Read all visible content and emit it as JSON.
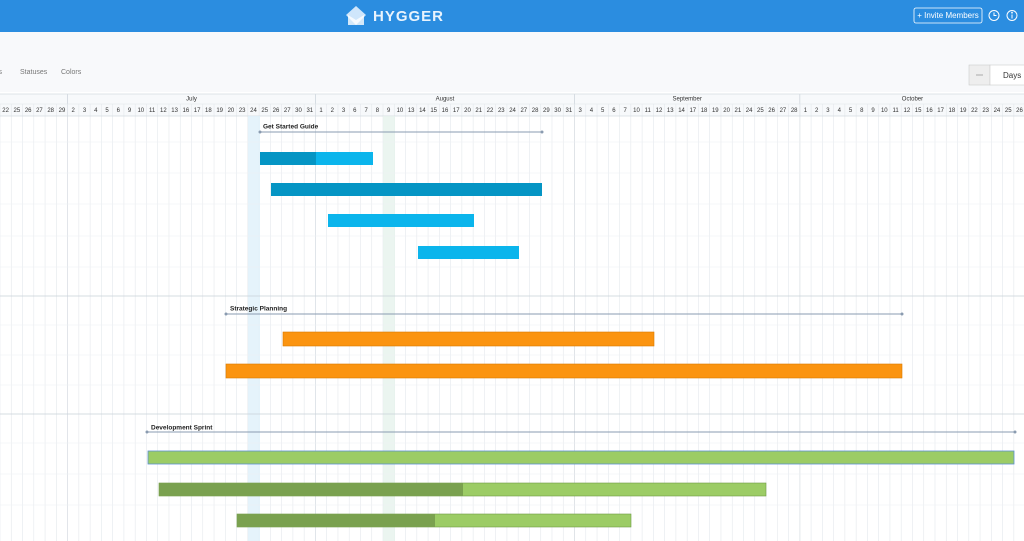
{
  "header": {
    "logo": "HYGGER",
    "invite_button": "+ Invite Members"
  },
  "toolbar": {
    "tabs": [
      "ls",
      "Statuses",
      "Colors"
    ],
    "scale": "Days"
  },
  "timeline": {
    "leading_days": [
      22,
      25,
      26,
      27,
      28,
      29
    ],
    "months": [
      {
        "label": "July",
        "days": [
          2,
          3,
          4,
          5,
          6,
          9,
          10,
          11,
          12,
          13,
          16,
          17,
          18,
          19,
          20,
          23,
          24,
          25,
          26,
          27,
          30,
          31
        ]
      },
      {
        "label": "August",
        "days": [
          1,
          2,
          3,
          6,
          7,
          8,
          9,
          10,
          13,
          14,
          15,
          16,
          17,
          20,
          21,
          22,
          23,
          24,
          27,
          28,
          29,
          30,
          31
        ]
      },
      {
        "label": "September",
        "days": [
          3,
          4,
          5,
          6,
          7,
          10,
          11,
          12,
          13,
          14,
          17,
          18,
          19,
          20,
          21,
          24,
          25,
          26,
          27,
          28
        ]
      },
      {
        "label": "October",
        "days": [
          1,
          2,
          3,
          4,
          5,
          8,
          9,
          10,
          11,
          12,
          15,
          16,
          17,
          18,
          19,
          22,
          23,
          24,
          25,
          26
        ]
      }
    ]
  },
  "groups": [
    {
      "title": "Get Started Guide"
    },
    {
      "title": "Strategic Planning"
    },
    {
      "title": "Development Sprint"
    }
  ]
}
